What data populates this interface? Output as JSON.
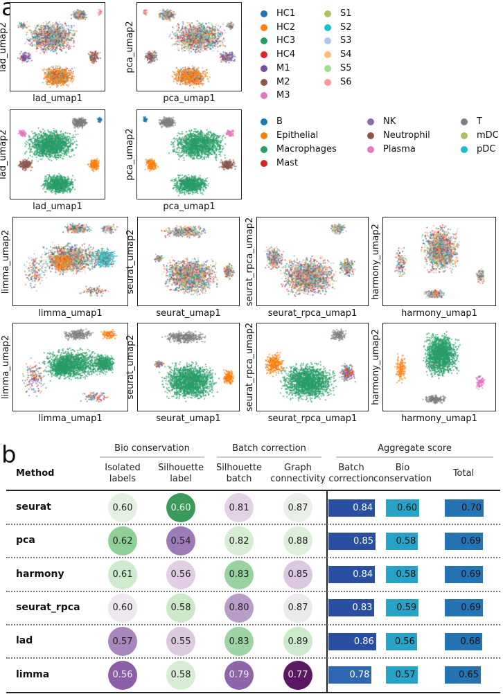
{
  "panel_labels": {
    "a": "a",
    "b": "b"
  },
  "umap_plots": [
    {
      "xlabel": "lad_umap1",
      "ylabel": "lad_umap2",
      "coloring": "batch",
      "shape": "A"
    },
    {
      "xlabel": "pca_umap1",
      "ylabel": "pca_umap2",
      "coloring": "batch",
      "shape": "A2"
    },
    {
      "xlabel": "lad_umap1",
      "ylabel": "lad_umap2",
      "coloring": "cell_type",
      "shape": "A"
    },
    {
      "xlabel": "pca_umap1",
      "ylabel": "pca_umap2",
      "coloring": "cell_type",
      "shape": "A2"
    },
    {
      "xlabel": "limma_umap1",
      "ylabel": "limma_umap2",
      "coloring": "batch",
      "shape": "B"
    },
    {
      "xlabel": "seurat_umap1",
      "ylabel": "seurat_umap2",
      "coloring": "batch",
      "shape": "C"
    },
    {
      "xlabel": "seurat_rpca_umap1",
      "ylabel": "seurat_rpca_umap2",
      "coloring": "batch",
      "shape": "D"
    },
    {
      "xlabel": "harmony_umap1",
      "ylabel": "harmony_umap2",
      "coloring": "batch",
      "shape": "E"
    },
    {
      "xlabel": "limma_umap1",
      "ylabel": "limma_umap2",
      "coloring": "cell_type",
      "shape": "B"
    },
    {
      "xlabel": "seurat_umap1",
      "ylabel": "seurat_umap2",
      "coloring": "cell_type",
      "shape": "C"
    },
    {
      "xlabel": "seurat_rpca_umap1",
      "ylabel": "seurat_rpca_umap2",
      "coloring": "cell_type",
      "shape": "D"
    },
    {
      "xlabel": "harmony_umap1",
      "ylabel": "harmony_umap2",
      "coloring": "cell_type",
      "shape": "E"
    }
  ],
  "legends": {
    "batch": [
      {
        "label": "HC1",
        "color": "#1f77b4"
      },
      {
        "label": "HC2",
        "color": "#ff7f0e"
      },
      {
        "label": "HC3",
        "color": "#279e68"
      },
      {
        "label": "HC4",
        "color": "#d62728"
      },
      {
        "label": "M1",
        "color": "#7b4ea3"
      },
      {
        "label": "M2",
        "color": "#8c564b"
      },
      {
        "label": "M3",
        "color": "#e377c2"
      },
      {
        "label": "S1",
        "color": "#b5bd61"
      },
      {
        "label": "S2",
        "color": "#17becf"
      },
      {
        "label": "S3",
        "color": "#aec7e8"
      },
      {
        "label": "S4",
        "color": "#ffbb78"
      },
      {
        "label": "S5",
        "color": "#98df8a"
      },
      {
        "label": "S6",
        "color": "#ff9896"
      }
    ],
    "cell_type": [
      {
        "label": "B",
        "color": "#1f77b4"
      },
      {
        "label": "Epithelial",
        "color": "#ff7f0e"
      },
      {
        "label": "Macrophages",
        "color": "#279e68"
      },
      {
        "label": "Mast",
        "color": "#d62728"
      },
      {
        "label": "NK",
        "color": "#8c6bb1"
      },
      {
        "label": "Neutrophil",
        "color": "#8c564b"
      },
      {
        "label": "Plasma",
        "color": "#e377c2"
      },
      {
        "label": "T",
        "color": "#7f7f7f"
      },
      {
        "label": "mDC",
        "color": "#b5bd61"
      },
      {
        "label": "pDC",
        "color": "#17becf"
      }
    ]
  },
  "table": {
    "method_header": "Method",
    "groups": [
      "Bio conservation",
      "Batch correction",
      "Aggregate score"
    ],
    "columns": [
      [
        "Isolated",
        "labels"
      ],
      [
        "Silhouette",
        "label"
      ],
      [
        "Silhouette",
        "batch"
      ],
      [
        "Graph",
        "connectivity"
      ],
      [
        "Batch",
        "correction"
      ],
      [
        "Bio",
        "conservation"
      ],
      [
        "",
        "Total"
      ]
    ],
    "bar_colors": {
      "batch_correction": "#2b4fa0",
      "batch_correction_light": "#2e66b0",
      "bio_conservation": "#27a3c8",
      "total": "#2473b3"
    },
    "rows": [
      {
        "method": "seurat",
        "metrics": [
          {
            "value": "0.60",
            "color": "#e6efe3",
            "text": "#222"
          },
          {
            "value": "0.60",
            "color": "#3a9a5a",
            "text": "#f0f0f0"
          },
          {
            "value": "0.81",
            "color": "#e3d1e6",
            "text": "#222"
          },
          {
            "value": "0.87",
            "color": "#ebefe9",
            "text": "#222"
          }
        ],
        "aggregate": {
          "batch_correction": 0.84,
          "bio_conservation": 0.6,
          "total": 0.7
        },
        "aggregate_text": [
          "0.84",
          "0.60",
          "0.70"
        ]
      },
      {
        "method": "pca",
        "metrics": [
          {
            "value": "0.62",
            "color": "#8fcf98",
            "text": "#222"
          },
          {
            "value": "0.54",
            "color": "#9c7bb6",
            "text": "#222"
          },
          {
            "value": "0.82",
            "color": "#d6ecd3",
            "text": "#222"
          },
          {
            "value": "0.88",
            "color": "#dcefd9",
            "text": "#222"
          }
        ],
        "aggregate": {
          "batch_correction": 0.85,
          "bio_conservation": 0.58,
          "total": 0.69
        },
        "aggregate_text": [
          "0.85",
          "0.58",
          "0.69"
        ]
      },
      {
        "method": "harmony",
        "metrics": [
          {
            "value": "0.61",
            "color": "#d0eacd",
            "text": "#222"
          },
          {
            "value": "0.56",
            "color": "#e1cee4",
            "text": "#222"
          },
          {
            "value": "0.83",
            "color": "#97d2a0",
            "text": "#222"
          },
          {
            "value": "0.85",
            "color": "#dcc7e1",
            "text": "#222"
          }
        ],
        "aggregate": {
          "batch_correction": 0.84,
          "bio_conservation": 0.58,
          "total": 0.69
        },
        "aggregate_text": [
          "0.84",
          "0.58",
          "0.69"
        ]
      },
      {
        "method": "seurat_rpca",
        "metrics": [
          {
            "value": "0.60",
            "color": "#ece8ee",
            "text": "#222"
          },
          {
            "value": "0.58",
            "color": "#cce8c9",
            "text": "#222"
          },
          {
            "value": "0.80",
            "color": "#b89dc9",
            "text": "#222"
          },
          {
            "value": "0.87",
            "color": "#ebe9ec",
            "text": "#222"
          }
        ],
        "aggregate": {
          "batch_correction": 0.83,
          "bio_conservation": 0.59,
          "total": 0.69
        },
        "aggregate_text": [
          "0.83",
          "0.59",
          "0.69"
        ]
      },
      {
        "method": "lad",
        "metrics": [
          {
            "value": "0.57",
            "color": "#a686bc",
            "text": "#222"
          },
          {
            "value": "0.55",
            "color": "#dcc9e0",
            "text": "#222"
          },
          {
            "value": "0.83",
            "color": "#9dd4a5",
            "text": "#222"
          },
          {
            "value": "0.89",
            "color": "#cde9cb",
            "text": "#222"
          }
        ],
        "aggregate": {
          "batch_correction": 0.86,
          "bio_conservation": 0.56,
          "total": 0.68
        },
        "aggregate_text": [
          "0.86",
          "0.56",
          "0.68"
        ]
      },
      {
        "method": "limma",
        "metrics": [
          {
            "value": "0.56",
            "color": "#8a5fa7",
            "text": "#f0f0f0"
          },
          {
            "value": "0.58",
            "color": "#d6edd3",
            "text": "#222"
          },
          {
            "value": "0.79",
            "color": "#8e65a9",
            "text": "#f0f0f0"
          },
          {
            "value": "0.77",
            "color": "#5b1862",
            "text": "#f0f0f0"
          }
        ],
        "aggregate": {
          "batch_correction": 0.78,
          "bio_conservation": 0.57,
          "total": 0.65
        },
        "aggregate_text": [
          "0.78",
          "0.57",
          "0.65"
        ]
      }
    ]
  }
}
